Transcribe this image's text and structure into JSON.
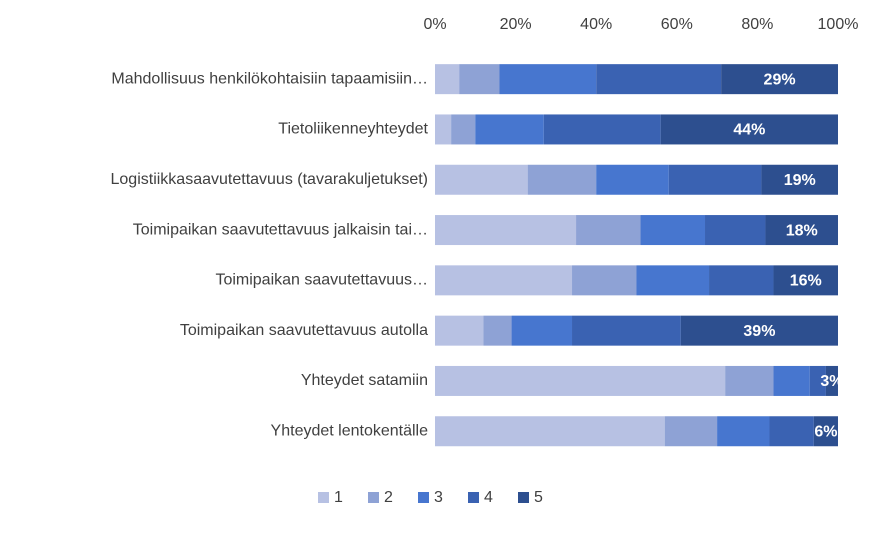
{
  "chart_data": {
    "type": "stacked-bar-horizontal",
    "categories": [
      "Mahdollisuus henkilökohtaisiin tapaamisiin…",
      "Tietoliikenneyhteydet",
      "Logistiikkasaavutettavuus (tavarakuljetukset)",
      "Toimipaikan saavutettavuus jalkaisin tai…",
      "Toimipaikan saavutettavuus…",
      "Toimipaikan saavutettavuus autolla",
      "Yhteydet satamiin",
      "Yhteydet lentokentälle"
    ],
    "series": [
      {
        "name": "1",
        "color": "#b7c1e3",
        "values": [
          6,
          4,
          23,
          35,
          34,
          12,
          72,
          57
        ]
      },
      {
        "name": "2",
        "color": "#8ea2d5",
        "values": [
          10,
          6,
          17,
          16,
          16,
          7,
          12,
          13
        ]
      },
      {
        "name": "3",
        "color": "#4776cf",
        "values": [
          24,
          17,
          18,
          16,
          18,
          15,
          9,
          13
        ]
      },
      {
        "name": "4",
        "color": "#3a62b2",
        "values": [
          31,
          29,
          23,
          15,
          16,
          27,
          4,
          11
        ]
      },
      {
        "name": "5",
        "color": "#2d4f8f",
        "values": [
          29,
          44,
          19,
          18,
          16,
          39,
          3,
          6
        ],
        "value_labels": [
          "29%",
          "44%",
          "19%",
          "18%",
          "16%",
          "39%",
          "3%",
          "6%"
        ]
      }
    ],
    "xlim": [
      0,
      100
    ],
    "xticks": [
      {
        "value": 0,
        "label": "0%"
      },
      {
        "value": 20,
        "label": "20%"
      },
      {
        "value": 40,
        "label": "40%"
      },
      {
        "value": 60,
        "label": "60%"
      },
      {
        "value": 80,
        "label": "80%"
      },
      {
        "value": 100,
        "label": "100%"
      }
    ],
    "legend": "bottom"
  }
}
